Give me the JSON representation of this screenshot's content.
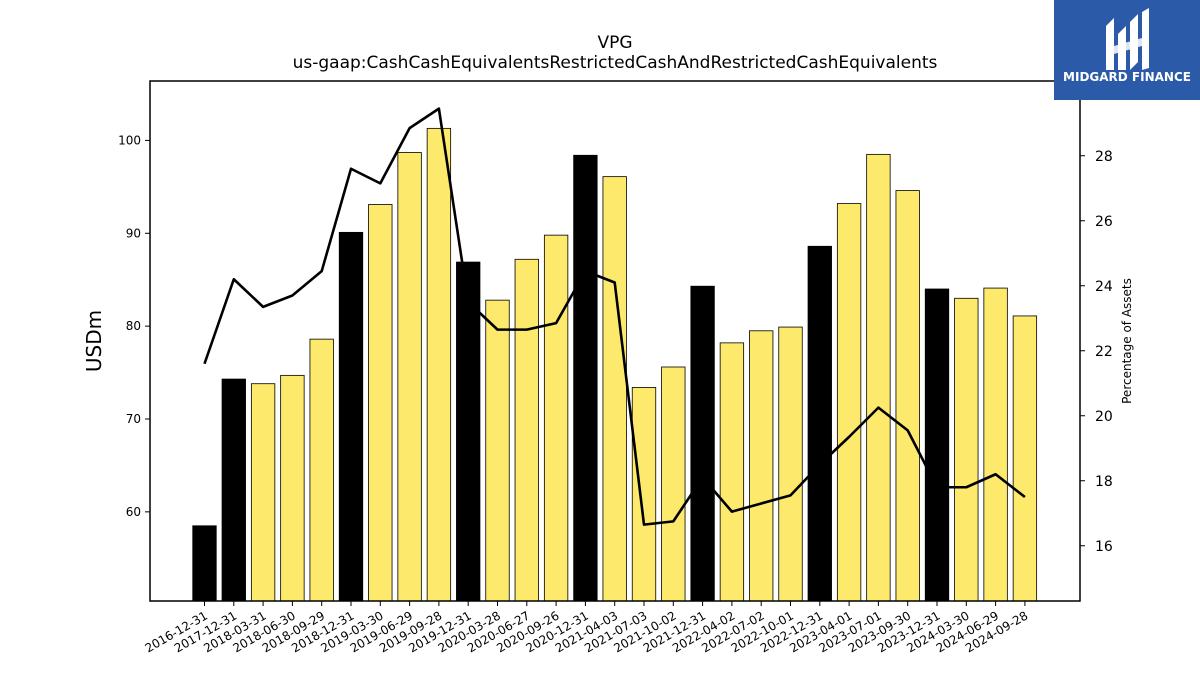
{
  "brand": {
    "name": "MIDGARD FINANCE",
    "bg_color": "#2b5aa8",
    "icon": "midgard-logo-icon"
  },
  "chart_data": {
    "type": "bar",
    "title": "VPG",
    "subtitle": "us-gaap:CashCashEquivalentsRestrictedCashAndRestrictedCashEquivalents",
    "ylabel": "USDm",
    "y2label": "Percentage of Assets",
    "ylim": [
      50.4,
      106.4
    ],
    "y2lim": [
      14.3,
      30.3
    ],
    "yticks": [
      60,
      70,
      80,
      90,
      100
    ],
    "y2ticks": [
      16,
      18,
      20,
      22,
      24,
      26,
      28
    ],
    "grid": false,
    "colors": {
      "annual": "#000000",
      "quarterly": "#fde96c",
      "line": "#000000"
    },
    "categories": [
      "2016-12-31",
      "2017-12-31",
      "2018-03-31",
      "2018-06-30",
      "2018-09-29",
      "2018-12-31",
      "2019-03-30",
      "2019-06-29",
      "2019-09-28",
      "2019-12-31",
      "2020-03-28",
      "2020-06-27",
      "2020-09-26",
      "2020-12-31",
      "2021-04-03",
      "2021-07-03",
      "2021-10-02",
      "2021-12-31",
      "2022-04-02",
      "2022-07-02",
      "2022-10-01",
      "2022-12-31",
      "2023-04-01",
      "2023-07-01",
      "2023-09-30",
      "2023-12-31",
      "2024-03-30",
      "2024-06-29",
      "2024-09-28"
    ],
    "series": [
      {
        "kind": "bar",
        "values": [
          58.5,
          74.3,
          73.8,
          74.7,
          78.6,
          90.1,
          93.1,
          98.7,
          101.3,
          86.9,
          82.8,
          87.2,
          89.8,
          98.4,
          96.1,
          73.4,
          75.6,
          84.3,
          78.2,
          79.5,
          79.9,
          88.6,
          93.2,
          98.5,
          94.6,
          84.0,
          83.0,
          84.1,
          81.1
        ],
        "period": [
          "annual",
          "annual",
          "quarterly",
          "quarterly",
          "quarterly",
          "annual",
          "quarterly",
          "quarterly",
          "quarterly",
          "annual",
          "quarterly",
          "quarterly",
          "quarterly",
          "annual",
          "quarterly",
          "quarterly",
          "quarterly",
          "annual",
          "quarterly",
          "quarterly",
          "quarterly",
          "annual",
          "quarterly",
          "quarterly",
          "quarterly",
          "annual",
          "quarterly",
          "quarterly",
          "quarterly"
        ]
      },
      {
        "kind": "line",
        "axis": "right",
        "values": [
          21.6,
          24.2,
          23.35,
          23.7,
          24.45,
          27.6,
          27.15,
          28.85,
          29.45,
          23.5,
          22.65,
          22.65,
          22.85,
          24.45,
          24.1,
          16.65,
          16.75,
          18.1,
          17.05,
          17.3,
          17.55,
          18.5,
          19.35,
          20.25,
          19.55,
          17.8,
          17.8,
          18.2,
          17.5
        ]
      }
    ]
  }
}
